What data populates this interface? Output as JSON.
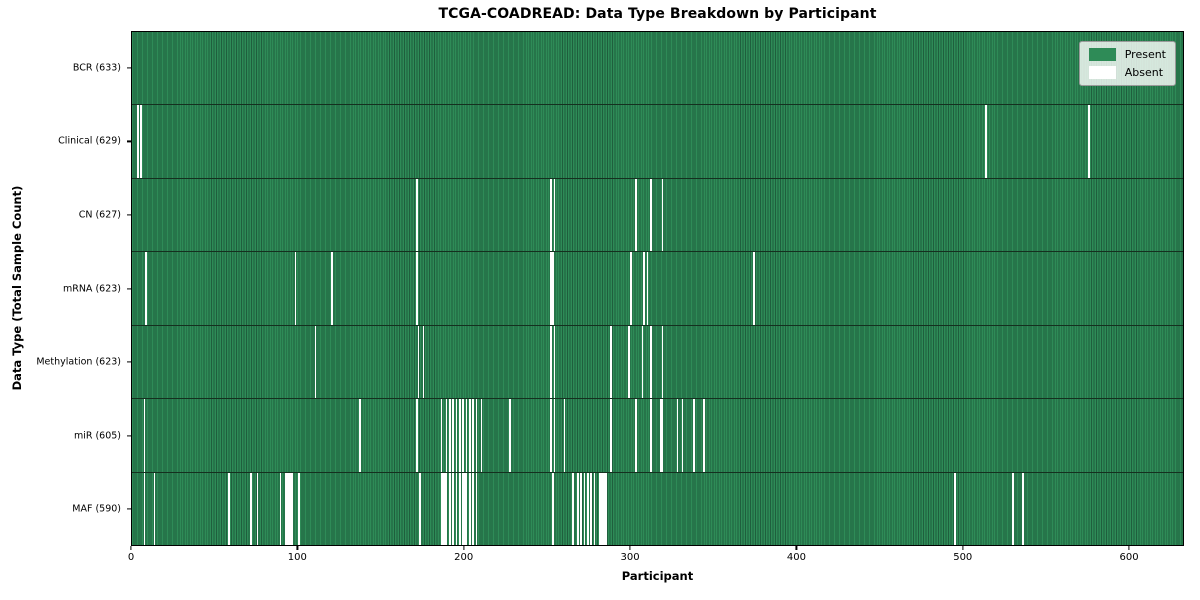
{
  "title": "TCGA-COADREAD: Data Type Breakdown by Participant",
  "axes": {
    "xlabel": "Participant",
    "ylabel": "Data Type (Total Sample Count)"
  },
  "legend": {
    "present_label": "Present",
    "absent_label": "Absent",
    "position": "upper right"
  },
  "colors": {
    "present": "#2e8b57",
    "present_edge": "#1f5f3d",
    "absent": "#ffffff",
    "row_divider": "#15301f",
    "spine": "#000000",
    "legend_bg": "rgba(255,255,255,0.8)"
  },
  "chart_data": {
    "type": "heatmap",
    "title": "TCGA-COADREAD: Data Type Breakdown by Participant",
    "xlabel": "Participant",
    "ylabel": "Data Type (Total Sample Count)",
    "x_ticks": [
      0,
      100,
      200,
      300,
      400,
      500,
      600
    ],
    "xlim": [
      0,
      633
    ],
    "total_participants": 633,
    "grid": false,
    "legend_entries": [
      "Present",
      "Absent"
    ],
    "legend_position": "upper right",
    "rows": [
      {
        "key": "bcr",
        "label": "BCR (633)",
        "data_type": "BCR",
        "present_count": 633,
        "absent_participants": []
      },
      {
        "key": "clinical",
        "label": "Clinical (629)",
        "data_type": "Clinical",
        "present_count": 629,
        "absent_participants": [
          3,
          5,
          514,
          576
        ]
      },
      {
        "key": "cn",
        "label": "CN (627)",
        "data_type": "CN",
        "present_count": 627,
        "absent_participants": [
          171,
          252,
          254,
          303,
          312,
          319
        ]
      },
      {
        "key": "mrna",
        "label": "mRNA (623)",
        "data_type": "mRNA",
        "present_count": 623,
        "absent_participants": [
          8,
          98,
          120,
          171,
          252,
          253,
          300,
          308,
          310,
          374
        ]
      },
      {
        "key": "methylation",
        "label": "Methylation (623)",
        "data_type": "Methylation",
        "present_count": 623,
        "absent_participants": [
          110,
          172,
          175,
          252,
          254,
          288,
          299,
          307,
          312,
          319
        ]
      },
      {
        "key": "mir",
        "label": "miR (605)",
        "data_type": "miR",
        "present_count": 605,
        "absent_participants": [
          7,
          137,
          171,
          186,
          189,
          191,
          193,
          195,
          197,
          199,
          201,
          203,
          205,
          207,
          210,
          227,
          252,
          254,
          260,
          288,
          303,
          312,
          318,
          319,
          328,
          331,
          338,
          344
        ]
      },
      {
        "key": "maf",
        "label": "MAF (590)",
        "data_type": "MAF",
        "present_count": 590,
        "absent_participants": [
          7,
          13,
          58,
          71,
          75,
          89,
          92,
          93,
          94,
          95,
          96,
          100,
          173,
          186,
          187,
          188,
          189,
          191,
          193,
          195,
          197,
          199,
          200,
          201,
          203,
          205,
          207,
          253,
          265,
          268,
          270,
          272,
          274,
          276,
          278,
          281,
          282,
          283,
          284,
          285,
          495,
          530,
          536
        ]
      }
    ]
  }
}
